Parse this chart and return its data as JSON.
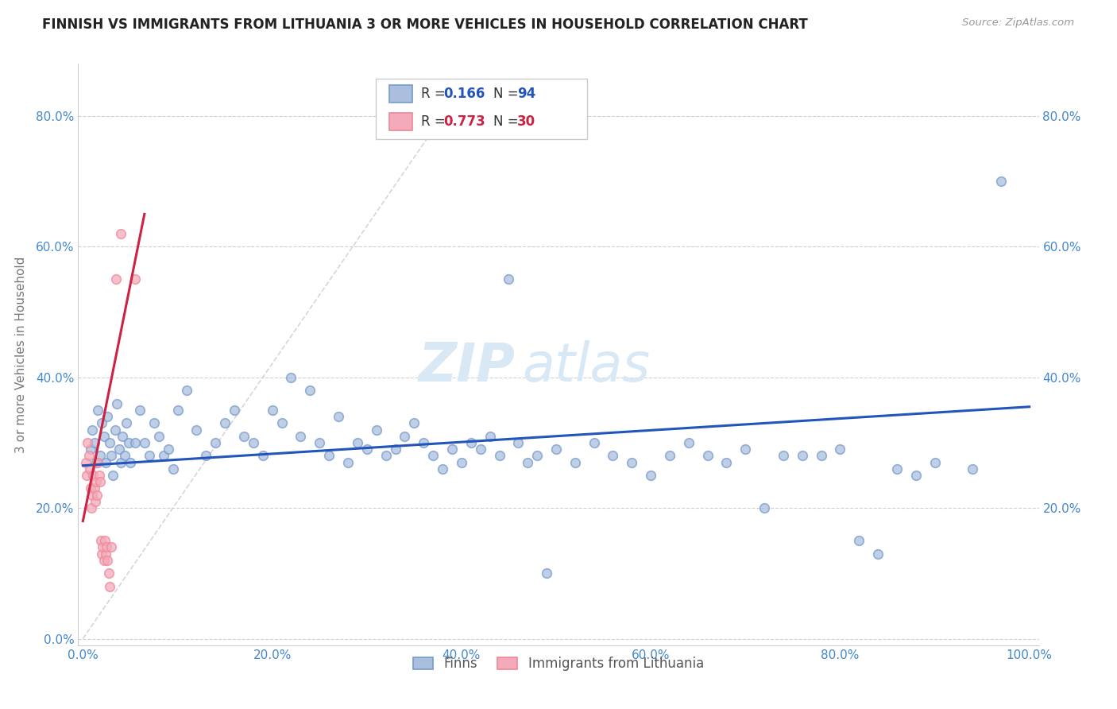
{
  "title": "FINNISH VS IMMIGRANTS FROM LITHUANIA 3 OR MORE VEHICLES IN HOUSEHOLD CORRELATION CHART",
  "source": "Source: ZipAtlas.com",
  "ylabel": "3 or more Vehicles in Household",
  "xlim": [
    -0.005,
    1.01
  ],
  "ylim": [
    -0.01,
    0.88
  ],
  "xtick_vals": [
    0.0,
    0.2,
    0.4,
    0.6,
    0.8,
    1.0
  ],
  "xtick_labels": [
    "0.0%",
    "20.0%",
    "40.0%",
    "60.0%",
    "80.0%",
    "100.0%"
  ],
  "ytick_vals": [
    0.0,
    0.2,
    0.4,
    0.6,
    0.8
  ],
  "ytick_labels": [
    "0.0%",
    "20.0%",
    "40.0%",
    "60.0%",
    "80.0%"
  ],
  "r1": "0.166",
  "n1": "94",
  "r2": "0.773",
  "n2": "30",
  "blue_face": "#AABFDE",
  "blue_edge": "#7799CC",
  "pink_face": "#F4AABB",
  "pink_edge": "#EE8899",
  "trend_blue": "#2255BB",
  "trend_pink": "#CC2244",
  "ref_color": "#CCCCCC",
  "axis_tick_color": "#4488CC",
  "grid_color": "#CCCCCC",
  "ylabel_color": "#777777",
  "title_color": "#222222",
  "source_color": "#999999",
  "watermark_color": "#D8E8F5",
  "finns_x": [
    0.008,
    0.01,
    0.012,
    0.014,
    0.016,
    0.018,
    0.02,
    0.022,
    0.024,
    0.026,
    0.028,
    0.03,
    0.032,
    0.034,
    0.036,
    0.038,
    0.04,
    0.042,
    0.044,
    0.046,
    0.048,
    0.05,
    0.055,
    0.06,
    0.065,
    0.07,
    0.075,
    0.08,
    0.085,
    0.09,
    0.095,
    0.1,
    0.11,
    0.12,
    0.13,
    0.14,
    0.15,
    0.16,
    0.17,
    0.18,
    0.19,
    0.2,
    0.21,
    0.22,
    0.23,
    0.24,
    0.25,
    0.26,
    0.27,
    0.28,
    0.29,
    0.3,
    0.31,
    0.32,
    0.33,
    0.34,
    0.35,
    0.36,
    0.37,
    0.38,
    0.39,
    0.4,
    0.41,
    0.42,
    0.43,
    0.44,
    0.45,
    0.46,
    0.47,
    0.48,
    0.49,
    0.5,
    0.52,
    0.54,
    0.56,
    0.58,
    0.6,
    0.62,
    0.64,
    0.66,
    0.68,
    0.7,
    0.72,
    0.74,
    0.76,
    0.78,
    0.8,
    0.82,
    0.84,
    0.86,
    0.88,
    0.9,
    0.94,
    0.97
  ],
  "finns_y": [
    0.29,
    0.32,
    0.3,
    0.27,
    0.35,
    0.28,
    0.33,
    0.31,
    0.27,
    0.34,
    0.3,
    0.28,
    0.25,
    0.32,
    0.36,
    0.29,
    0.27,
    0.31,
    0.28,
    0.33,
    0.3,
    0.27,
    0.3,
    0.35,
    0.3,
    0.28,
    0.33,
    0.31,
    0.28,
    0.29,
    0.26,
    0.35,
    0.38,
    0.32,
    0.28,
    0.3,
    0.33,
    0.35,
    0.31,
    0.3,
    0.28,
    0.35,
    0.33,
    0.4,
    0.31,
    0.38,
    0.3,
    0.28,
    0.34,
    0.27,
    0.3,
    0.29,
    0.32,
    0.28,
    0.29,
    0.31,
    0.33,
    0.3,
    0.28,
    0.26,
    0.29,
    0.27,
    0.3,
    0.29,
    0.31,
    0.28,
    0.55,
    0.3,
    0.27,
    0.28,
    0.1,
    0.29,
    0.27,
    0.3,
    0.28,
    0.27,
    0.25,
    0.28,
    0.3,
    0.28,
    0.27,
    0.29,
    0.2,
    0.28,
    0.28,
    0.28,
    0.29,
    0.15,
    0.13,
    0.26,
    0.25,
    0.27,
    0.26,
    0.7
  ],
  "immigrants_x": [
    0.003,
    0.004,
    0.005,
    0.006,
    0.007,
    0.008,
    0.009,
    0.01,
    0.011,
    0.012,
    0.013,
    0.014,
    0.015,
    0.016,
    0.017,
    0.018,
    0.019,
    0.02,
    0.021,
    0.022,
    0.023,
    0.024,
    0.025,
    0.026,
    0.027,
    0.028,
    0.03,
    0.035,
    0.04,
    0.055
  ],
  "immigrants_y": [
    0.27,
    0.25,
    0.3,
    0.28,
    0.26,
    0.23,
    0.2,
    0.22,
    0.25,
    0.23,
    0.21,
    0.24,
    0.22,
    0.27,
    0.25,
    0.24,
    0.15,
    0.13,
    0.14,
    0.12,
    0.15,
    0.13,
    0.14,
    0.12,
    0.1,
    0.08,
    0.14,
    0.55,
    0.62,
    0.55
  ],
  "finns_trend_x": [
    0.0,
    1.0
  ],
  "finns_trend_y": [
    0.265,
    0.355
  ],
  "imm_trend_x": [
    0.0,
    0.065
  ],
  "imm_trend_y": [
    0.18,
    0.65
  ],
  "ref_line_x": [
    0.0,
    0.38
  ],
  "ref_line_y": [
    0.0,
    0.8
  ]
}
